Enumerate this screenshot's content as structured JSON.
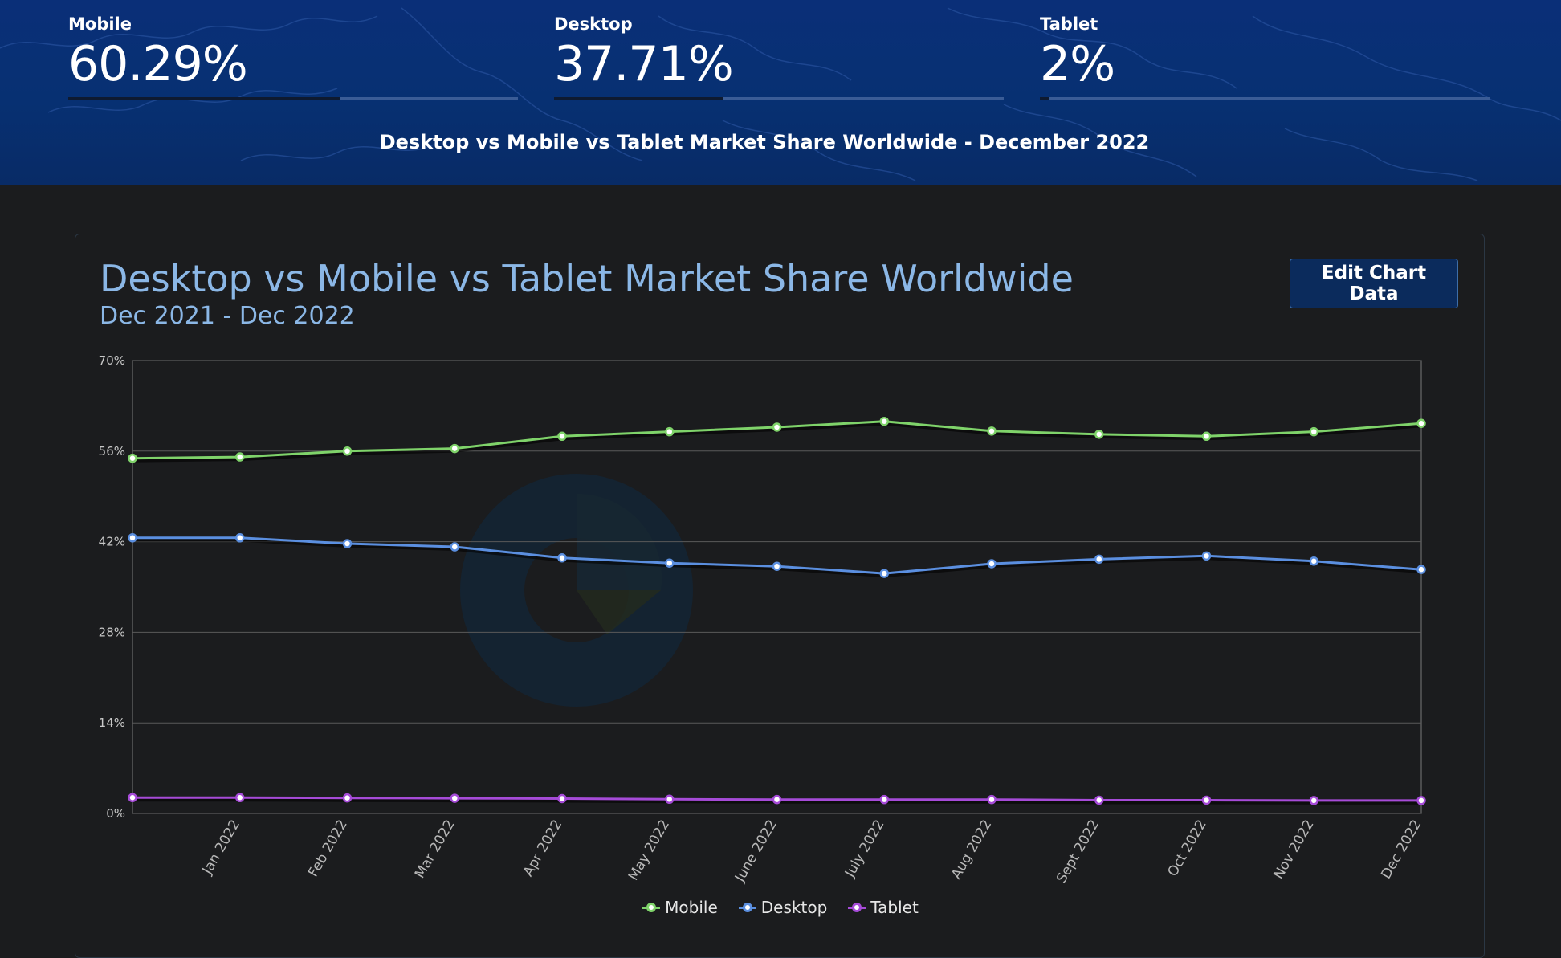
{
  "stats": [
    {
      "label": "Mobile",
      "value": "60.29%",
      "share": 0.6029
    },
    {
      "label": "Desktop",
      "value": "37.71%",
      "share": 0.3771
    },
    {
      "label": "Tablet",
      "value": "2%",
      "share": 0.02
    }
  ],
  "hero_caption": "Desktop vs Mobile vs Tablet Market Share Worldwide - December 2022",
  "edit_button_label": "Edit Chart Data",
  "colors": {
    "mobile": "#7fd36a",
    "desktop": "#5b8fe0",
    "tablet": "#a64bd8",
    "title": "#8bb7e6",
    "hero": "#073072"
  },
  "chart_data": {
    "type": "line",
    "title": "Desktop vs Mobile vs Tablet Market Share Worldwide",
    "subtitle": "Dec 2021 - Dec 2022",
    "xlabel": "",
    "ylabel": "",
    "ylim": [
      0,
      70
    ],
    "yticks": [
      0,
      14,
      28,
      42,
      56,
      70
    ],
    "ytick_labels": [
      "0%",
      "14%",
      "28%",
      "42%",
      "56%",
      "70%"
    ],
    "categories": [
      "Dec 2021",
      "Jan 2022",
      "Feb 2022",
      "Mar 2022",
      "Apr 2022",
      "May 2022",
      "June 2022",
      "July 2022",
      "Aug 2022",
      "Sept 2022",
      "Oct 2022",
      "Nov 2022",
      "Dec 2022"
    ],
    "xtick_labels": [
      "",
      "Jan 2022",
      "Feb 2022",
      "Mar 2022",
      "Apr 2022",
      "May 2022",
      "June 2022",
      "July 2022",
      "Aug 2022",
      "Sept 2022",
      "Oct 2022",
      "Nov 2022",
      "Dec 2022"
    ],
    "grid": true,
    "legend_position": "bottom-center",
    "series": [
      {
        "name": "Mobile",
        "color": "#7fd36a",
        "values": [
          54.9,
          55.1,
          56.0,
          56.4,
          58.3,
          59.0,
          59.7,
          60.6,
          59.1,
          58.6,
          58.3,
          59.0,
          60.29
        ]
      },
      {
        "name": "Desktop",
        "color": "#5b8fe0",
        "values": [
          42.6,
          42.6,
          41.7,
          41.2,
          39.5,
          38.7,
          38.2,
          37.1,
          38.6,
          39.3,
          39.8,
          39.0,
          37.71
        ]
      },
      {
        "name": "Tablet",
        "color": "#a64bd8",
        "values": [
          2.45,
          2.45,
          2.4,
          2.35,
          2.3,
          2.2,
          2.15,
          2.15,
          2.15,
          2.05,
          2.05,
          2.0,
          2.0
        ]
      }
    ]
  }
}
